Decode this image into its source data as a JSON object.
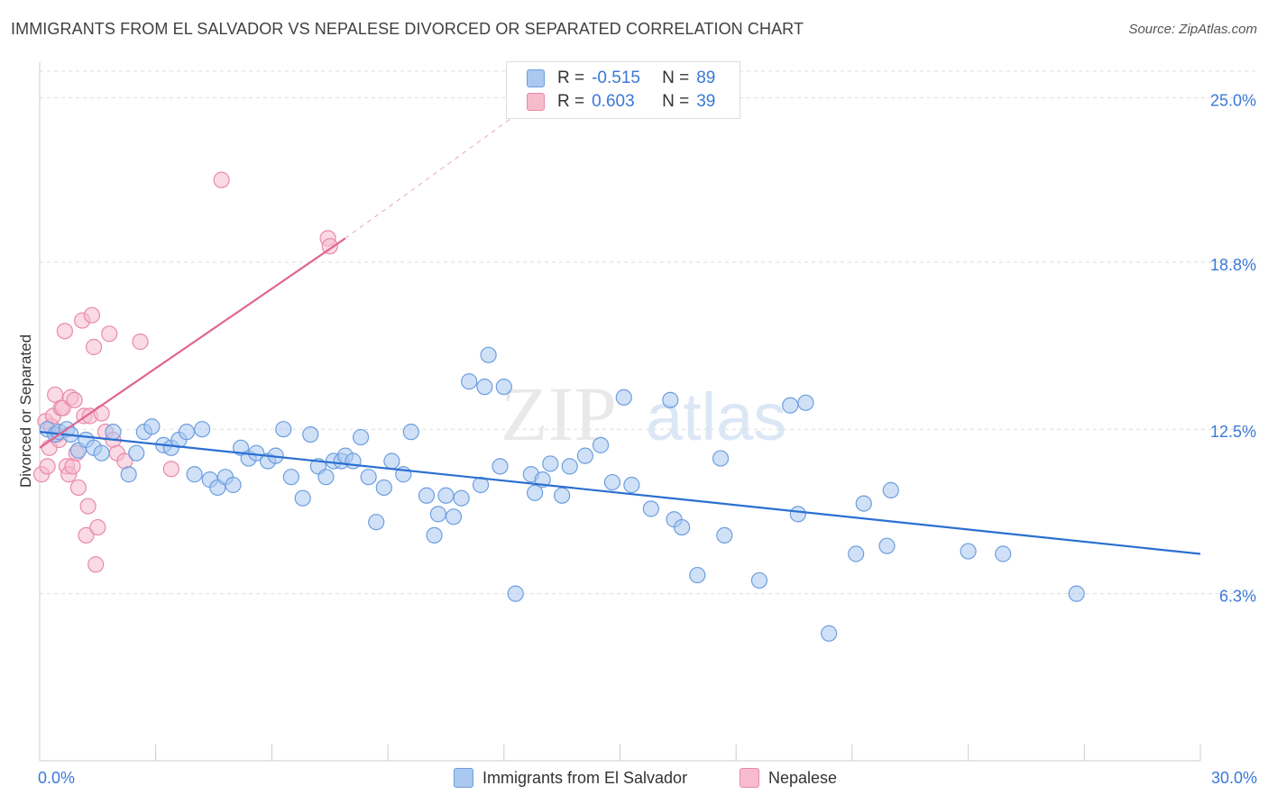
{
  "title": "IMMIGRANTS FROM EL SALVADOR VS NEPALESE DIVORCED OR SEPARATED CORRELATION CHART",
  "source": "Source: ZipAtlas.com",
  "watermark": {
    "zip": "ZIP",
    "atlas": "atlas"
  },
  "legend": {
    "r_label": "R =",
    "n_label": "N =",
    "blue": {
      "r": "-0.515",
      "n": "89"
    },
    "pink": {
      "r": "0.603",
      "n": "39"
    }
  },
  "colors": {
    "blue_fill": "#aac8f0",
    "blue_stroke": "#6c9ee0",
    "blue_line": "#2b6fd1",
    "pink_fill": "#f6bccd",
    "pink_stroke": "#e98aa8",
    "pink_line": "#e0668f",
    "tick_text": "#3b78d8",
    "grid": "#dddddd"
  },
  "chart_data": {
    "type": "scatter",
    "title": "IMMIGRANTS FROM EL SALVADOR VS NEPALESE DIVORCED OR SEPARATED CORRELATION CHART",
    "xlabel": "",
    "ylabel": "Divorced or Separated",
    "xlim": [
      0,
      30
    ],
    "ylim": [
      0,
      26
    ],
    "x_tick_labels": [
      "0.0%",
      "30.0%"
    ],
    "y_ticks": [
      6.3,
      12.5,
      18.8,
      25.0
    ],
    "y_tick_labels": [
      "6.3%",
      "12.5%",
      "18.8%",
      "25.0%"
    ],
    "grid": true,
    "legend_position": "bottom",
    "series": [
      {
        "name": "Immigrants from El Salvador",
        "r": -0.515,
        "n": 89,
        "trend": [
          [
            0,
            12.4
          ],
          [
            30,
            7.8
          ]
        ],
        "points": [
          [
            0.2,
            12.5
          ],
          [
            0.4,
            12.3
          ],
          [
            0.5,
            12.4
          ],
          [
            0.7,
            12.5
          ],
          [
            0.8,
            12.3
          ],
          [
            1.0,
            11.7
          ],
          [
            1.2,
            12.1
          ],
          [
            1.4,
            11.8
          ],
          [
            1.6,
            11.6
          ],
          [
            1.9,
            12.4
          ],
          [
            2.3,
            10.8
          ],
          [
            2.5,
            11.6
          ],
          [
            2.7,
            12.4
          ],
          [
            2.9,
            12.6
          ],
          [
            3.2,
            11.9
          ],
          [
            3.4,
            11.8
          ],
          [
            3.6,
            12.1
          ],
          [
            3.8,
            12.4
          ],
          [
            4.0,
            10.8
          ],
          [
            4.2,
            12.5
          ],
          [
            4.4,
            10.6
          ],
          [
            4.6,
            10.3
          ],
          [
            4.8,
            10.7
          ],
          [
            5.0,
            10.4
          ],
          [
            5.2,
            11.8
          ],
          [
            5.4,
            11.4
          ],
          [
            5.6,
            11.6
          ],
          [
            5.9,
            11.3
          ],
          [
            6.1,
            11.5
          ],
          [
            6.3,
            12.5
          ],
          [
            6.5,
            10.7
          ],
          [
            6.8,
            9.9
          ],
          [
            7.0,
            12.3
          ],
          [
            7.2,
            11.1
          ],
          [
            7.4,
            10.7
          ],
          [
            7.6,
            11.3
          ],
          [
            7.8,
            11.3
          ],
          [
            7.9,
            11.5
          ],
          [
            8.1,
            11.3
          ],
          [
            8.3,
            12.2
          ],
          [
            8.5,
            10.7
          ],
          [
            8.7,
            9.0
          ],
          [
            8.9,
            10.3
          ],
          [
            9.1,
            11.3
          ],
          [
            9.4,
            10.8
          ],
          [
            9.6,
            12.4
          ],
          [
            10.0,
            10.0
          ],
          [
            10.2,
            8.5
          ],
          [
            10.3,
            9.3
          ],
          [
            10.5,
            10.0
          ],
          [
            10.7,
            9.2
          ],
          [
            10.9,
            9.9
          ],
          [
            11.1,
            14.3
          ],
          [
            11.4,
            10.4
          ],
          [
            11.5,
            14.1
          ],
          [
            11.6,
            15.3
          ],
          [
            11.9,
            11.1
          ],
          [
            12.0,
            14.1
          ],
          [
            12.3,
            6.3
          ],
          [
            12.7,
            10.8
          ],
          [
            12.8,
            10.1
          ],
          [
            13.0,
            10.6
          ],
          [
            13.2,
            11.2
          ],
          [
            13.5,
            10.0
          ],
          [
            13.7,
            11.1
          ],
          [
            14.1,
            11.5
          ],
          [
            14.5,
            11.9
          ],
          [
            14.8,
            10.5
          ],
          [
            15.1,
            13.7
          ],
          [
            15.3,
            10.4
          ],
          [
            15.8,
            9.5
          ],
          [
            16.3,
            13.6
          ],
          [
            16.4,
            9.1
          ],
          [
            16.6,
            8.8
          ],
          [
            17.0,
            7.0
          ],
          [
            17.6,
            11.4
          ],
          [
            17.7,
            8.5
          ],
          [
            18.6,
            6.8
          ],
          [
            19.4,
            13.4
          ],
          [
            19.6,
            9.3
          ],
          [
            19.8,
            13.5
          ],
          [
            20.4,
            4.8
          ],
          [
            21.1,
            7.8
          ],
          [
            21.3,
            9.7
          ],
          [
            21.9,
            8.1
          ],
          [
            22.0,
            10.2
          ],
          [
            24.0,
            7.9
          ],
          [
            24.9,
            7.8
          ],
          [
            26.8,
            6.3
          ]
        ]
      },
      {
        "name": "Nepalese",
        "r": 0.603,
        "n": 39,
        "trend": [
          [
            0,
            11.8
          ],
          [
            7.9,
            19.7
          ]
        ],
        "trend_extension": [
          [
            7.9,
            19.7
          ],
          [
            13.4,
            25.5
          ]
        ],
        "points": [
          [
            0.05,
            10.8
          ],
          [
            0.15,
            12.8
          ],
          [
            0.2,
            11.1
          ],
          [
            0.25,
            11.8
          ],
          [
            0.3,
            12.6
          ],
          [
            0.35,
            13.0
          ],
          [
            0.4,
            13.8
          ],
          [
            0.45,
            12.3
          ],
          [
            0.5,
            12.1
          ],
          [
            0.55,
            13.3
          ],
          [
            0.6,
            13.3
          ],
          [
            0.65,
            16.2
          ],
          [
            0.7,
            11.1
          ],
          [
            0.75,
            10.8
          ],
          [
            0.8,
            13.7
          ],
          [
            0.85,
            11.1
          ],
          [
            0.9,
            13.6
          ],
          [
            0.95,
            11.6
          ],
          [
            1.0,
            10.3
          ],
          [
            1.1,
            16.6
          ],
          [
            1.15,
            13.0
          ],
          [
            1.2,
            8.5
          ],
          [
            1.25,
            9.6
          ],
          [
            1.3,
            13.0
          ],
          [
            1.35,
            16.8
          ],
          [
            1.4,
            15.6
          ],
          [
            1.45,
            7.4
          ],
          [
            1.5,
            8.8
          ],
          [
            1.6,
            13.1
          ],
          [
            1.7,
            12.4
          ],
          [
            1.8,
            16.1
          ],
          [
            1.9,
            12.1
          ],
          [
            2.0,
            11.6
          ],
          [
            2.2,
            11.3
          ],
          [
            2.6,
            15.8
          ],
          [
            3.4,
            11.0
          ],
          [
            4.7,
            21.9
          ],
          [
            7.45,
            19.7
          ],
          [
            7.5,
            19.4
          ]
        ]
      }
    ]
  }
}
